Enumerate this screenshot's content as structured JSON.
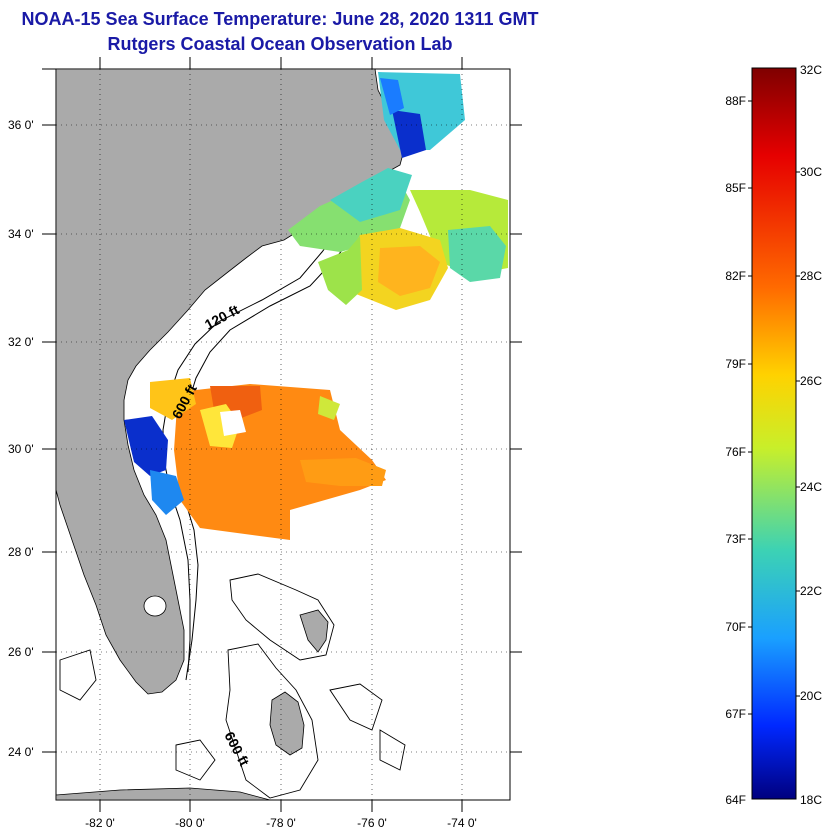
{
  "title": {
    "line1": "NOAA-15 Sea Surface Temperature:  June 28, 2020 1311 GMT",
    "line2": "Rutgers Coastal Ocean Observation Lab"
  },
  "map": {
    "lat_ticks": [
      "36 0'",
      "34 0'",
      "32 0'",
      "30 0'",
      "28 0'",
      "26 0'",
      "24 0'"
    ],
    "lon_ticks": [
      "-82 0'",
      "-80 0'",
      "-78 0'",
      "-76 0'",
      "-74 0'"
    ],
    "contour_labels": [
      "120 ft",
      "600 ft",
      "600 ft"
    ],
    "land_color": "#aaaaaa",
    "grid": "dotted"
  },
  "colorbar": {
    "fahrenheit_labels": [
      "88F",
      "85F",
      "82F",
      "79F",
      "76F",
      "73F",
      "70F",
      "67F",
      "64F"
    ],
    "celsius_labels": [
      "32C",
      "30C",
      "28C",
      "26C",
      "24C",
      "22C",
      "20C",
      "18C"
    ],
    "gradient": [
      "#7f0000",
      "#e60000",
      "#ff6a00",
      "#ffd200",
      "#c8ef2a",
      "#3cd2b4",
      "#1aa0ff",
      "#0028ff",
      "#00007f"
    ]
  }
}
